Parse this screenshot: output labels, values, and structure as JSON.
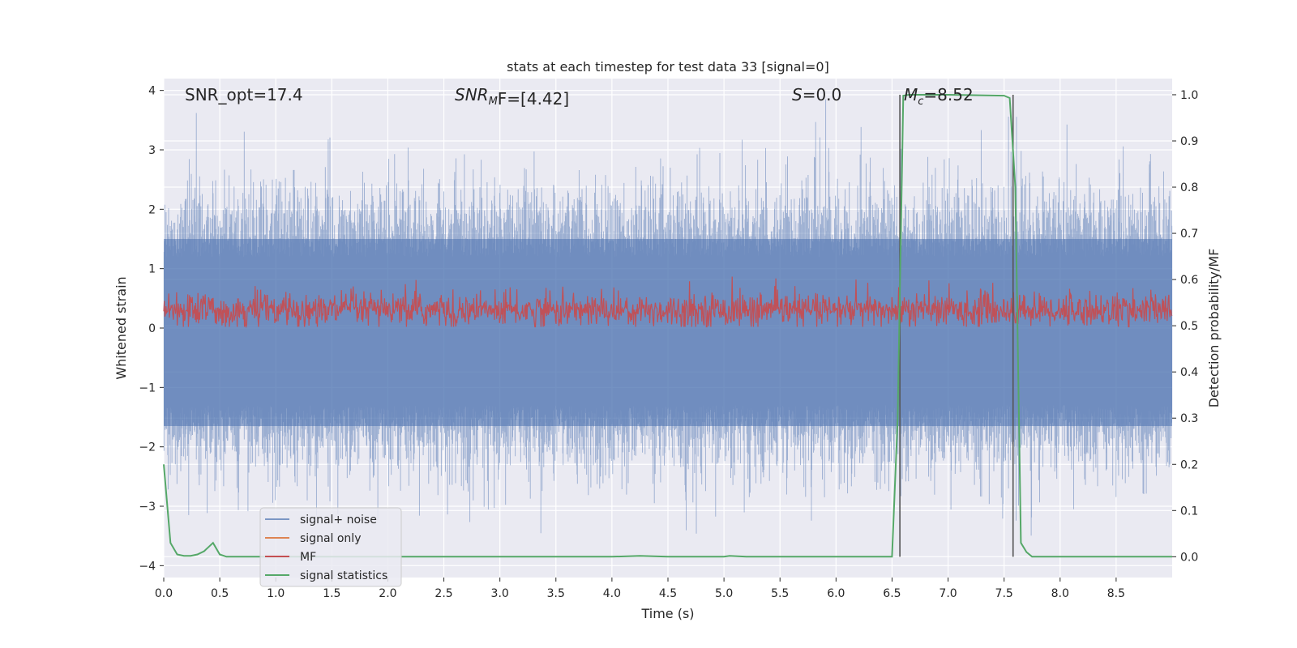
{
  "chart_data": {
    "type": "line",
    "title": "stats at each timestep for test data 33 [signal=0]",
    "xlabel": "Time (s)",
    "ylabel_left": "Whitened strain",
    "ylabel_right": "Detection probability/MF",
    "xlim": [
      0,
      9
    ],
    "ylim_left": [
      -4.2,
      4.2
    ],
    "ylim_right": [
      -0.045,
      1.035
    ],
    "x_ticks": [
      "0.0",
      "0.5",
      "1.0",
      "1.5",
      "2.0",
      "2.5",
      "3.0",
      "3.5",
      "4.0",
      "4.5",
      "5.0",
      "5.5",
      "6.0",
      "6.5",
      "7.0",
      "7.5",
      "8.0",
      "8.5"
    ],
    "y_ticks_left": [
      "4",
      "3",
      "2",
      "1",
      "0",
      "−1",
      "−2",
      "−3",
      "−4"
    ],
    "y_ticks_right": [
      "1.0",
      "0.9",
      "0.8",
      "0.7",
      "0.6",
      "0.5",
      "0.4",
      "0.3",
      "0.2",
      "0.1",
      "0.0"
    ],
    "grid": true,
    "legend_position": "lower-left",
    "annotations": {
      "snr_opt": "SNR_opt=17.4",
      "snr_mf_italic": "SNR",
      "snr_mf_sub": "M",
      "snr_mf_tail": "F=[4.42]",
      "s_italic": "S",
      "s_tail": "=0.0",
      "mc_italic": "M",
      "mc_sub": "c",
      "mc_tail": "=8.52"
    },
    "series": [
      {
        "name": "signal+ noise",
        "color": "#4c72b0",
        "description_axis": "left",
        "approx_range": [
          -4.0,
          3.85
        ]
      },
      {
        "name": "signal only",
        "color": "#dd8452",
        "axis": "left"
      },
      {
        "name": "MF",
        "color": "#c44e52",
        "axis": "left",
        "approx_range": [
          0.0,
          1.0
        ]
      },
      {
        "name": "signal statistics",
        "color": "#55a868",
        "axis": "right",
        "x": [
          0.0,
          0.06,
          0.12,
          0.18,
          0.24,
          0.3,
          0.36,
          0.44,
          0.5,
          0.56,
          1.0,
          2.0,
          3.0,
          4.0,
          4.25,
          4.5,
          5.0,
          5.05,
          5.2,
          5.5,
          6.0,
          6.5,
          6.55,
          6.6,
          6.65,
          7.0,
          7.5,
          7.55,
          7.6,
          7.65,
          7.7,
          7.75,
          8.0,
          8.5,
          9.0
        ],
        "y": [
          0.2,
          0.03,
          0.005,
          0.002,
          0.002,
          0.005,
          0.012,
          0.03,
          0.005,
          0.0,
          0.0,
          0.0,
          0.0,
          0.0,
          0.002,
          0.0,
          0.0,
          0.002,
          0.0,
          0.0,
          0.0,
          0.0,
          0.3,
          0.998,
          1.0,
          1.0,
          0.998,
          0.993,
          0.8,
          0.03,
          0.01,
          0.0,
          0.0,
          0.0,
          0.0
        ]
      }
    ],
    "vertical_lines_x": [
      6.57,
      7.58
    ]
  },
  "legend": {
    "items": [
      {
        "label": "signal+ noise",
        "color": "#4c72b0"
      },
      {
        "label": "signal only",
        "color": "#dd8452"
      },
      {
        "label": "MF",
        "color": "#c44e52"
      },
      {
        "label": "signal statistics",
        "color": "#55a868"
      }
    ]
  },
  "style": {
    "plot_background": "#eaeaf2",
    "grid_color": "#ffffff",
    "vline_color": "#555555"
  }
}
